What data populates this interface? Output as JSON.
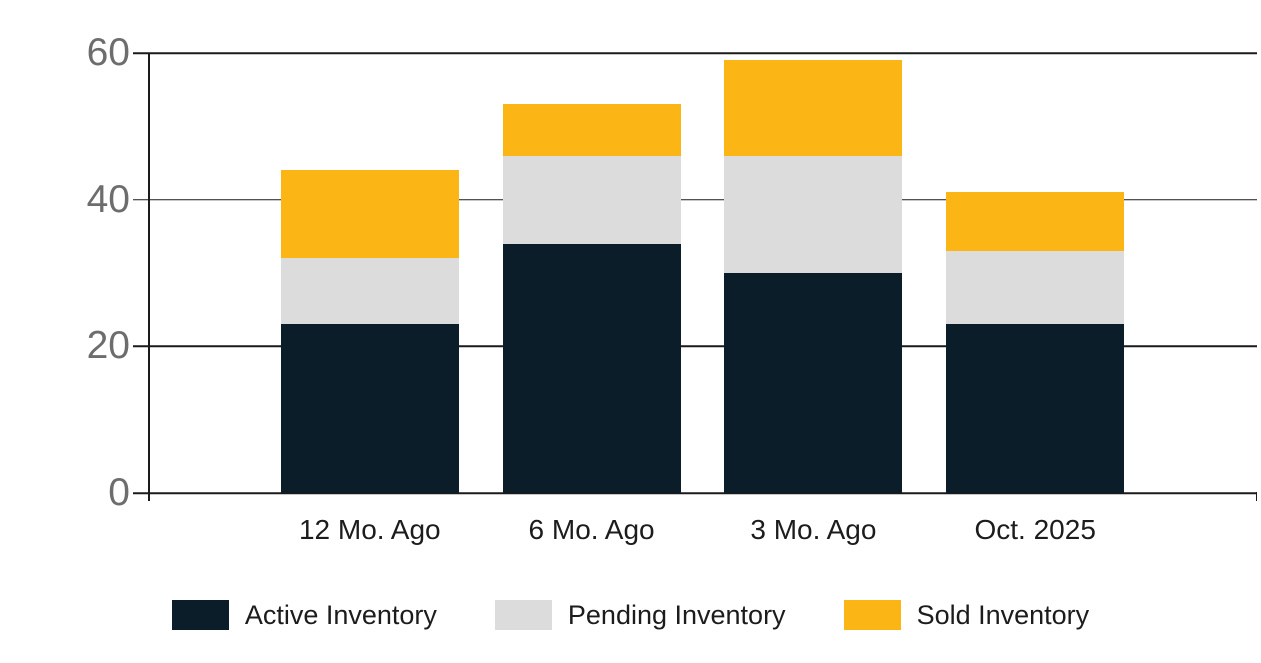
{
  "colors": {
    "background": "#ffffff",
    "axis_line": "#1a1a1a",
    "gridline": "#1a1a1a",
    "y_tick_label": "#6d6d6d",
    "x_tick_label": "#1c1c1c",
    "legend_text": "#1c1c1c",
    "active": "#0b1d29",
    "pending": "#dcdcdc",
    "sold": "#fbb616"
  },
  "chart_data": {
    "type": "bar",
    "stacked": true,
    "categories": [
      "12 Mo. Ago",
      "6 Mo. Ago",
      "3 Mo. Ago",
      "Oct. 2025"
    ],
    "series": [
      {
        "name": "Active Inventory",
        "color": "#0b1d29",
        "values": [
          23,
          34,
          30,
          23
        ]
      },
      {
        "name": "Pending Inventory",
        "color": "#dcdcdc",
        "values": [
          9,
          12,
          16,
          10
        ]
      },
      {
        "name": "Sold Inventory",
        "color": "#fbb616",
        "values": [
          12,
          7,
          13,
          8
        ]
      }
    ],
    "stack_totals": [
      44,
      53,
      59,
      41
    ],
    "ylim": [
      0,
      60
    ],
    "yticks": [
      0,
      20,
      40,
      60
    ],
    "grid": true,
    "legend_position": "bottom",
    "legend_entries": [
      "Active Inventory",
      "Pending Inventory",
      "Sold Inventory"
    ]
  }
}
